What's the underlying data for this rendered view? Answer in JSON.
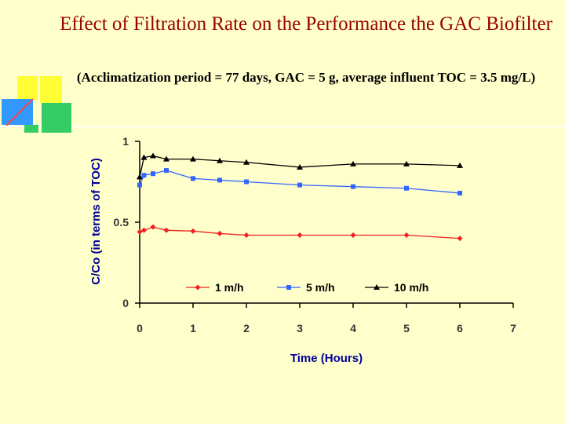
{
  "slide": {
    "title": "Effect of Filtration Rate on the Performance the GAC Biofilter",
    "subtitle": "(Acclimatization period = 77 days, GAC = 5 g, average influent TOC = 3.5 mg/L)"
  },
  "colors": {
    "background": "#ffffcc",
    "title": "#990000",
    "axis_label": "#000099",
    "deco_yellow": "#ffff33",
    "deco_blue": "#3399ff",
    "deco_green": "#33cc66",
    "deco_red": "#ff4444"
  },
  "chart_data": {
    "type": "line",
    "xlabel": "Time (Hours)",
    "ylabel": "C/Co (in terms of TOC)",
    "xlim": [
      0,
      7
    ],
    "ylim": [
      0,
      1
    ],
    "x_ticks": [
      "0",
      "1",
      "2",
      "3",
      "4",
      "5",
      "6",
      "7"
    ],
    "y_ticks": [
      "0",
      "0.5",
      "1"
    ],
    "grid": false,
    "legend_position": "bottom-center",
    "series": [
      {
        "name": "1 m/h",
        "color": "#ee2222",
        "marker": "diamond",
        "points": [
          [
            0,
            0.44
          ],
          [
            0.08,
            0.45
          ],
          [
            0.25,
            0.47
          ],
          [
            0.5,
            0.45
          ],
          [
            1,
            0.445
          ],
          [
            1.5,
            0.43
          ],
          [
            2,
            0.42
          ],
          [
            3,
            0.42
          ],
          [
            4,
            0.42
          ],
          [
            5,
            0.42
          ],
          [
            6,
            0.4
          ]
        ]
      },
      {
        "name": "5 m/h",
        "color": "#3366ff",
        "marker": "square",
        "points": [
          [
            0,
            0.73
          ],
          [
            0.08,
            0.79
          ],
          [
            0.25,
            0.8
          ],
          [
            0.5,
            0.82
          ],
          [
            1,
            0.77
          ],
          [
            1.5,
            0.76
          ],
          [
            2,
            0.75
          ],
          [
            3,
            0.73
          ],
          [
            4,
            0.72
          ],
          [
            5,
            0.71
          ],
          [
            6,
            0.68
          ]
        ]
      },
      {
        "name": "10 m/h",
        "color": "#000000",
        "marker": "triangle",
        "points": [
          [
            0,
            0.78
          ],
          [
            0.08,
            0.9
          ],
          [
            0.25,
            0.91
          ],
          [
            0.5,
            0.89
          ],
          [
            1,
            0.89
          ],
          [
            1.5,
            0.88
          ],
          [
            2,
            0.87
          ],
          [
            3,
            0.84
          ],
          [
            4,
            0.86
          ],
          [
            5,
            0.86
          ],
          [
            6,
            0.85
          ]
        ]
      }
    ]
  }
}
